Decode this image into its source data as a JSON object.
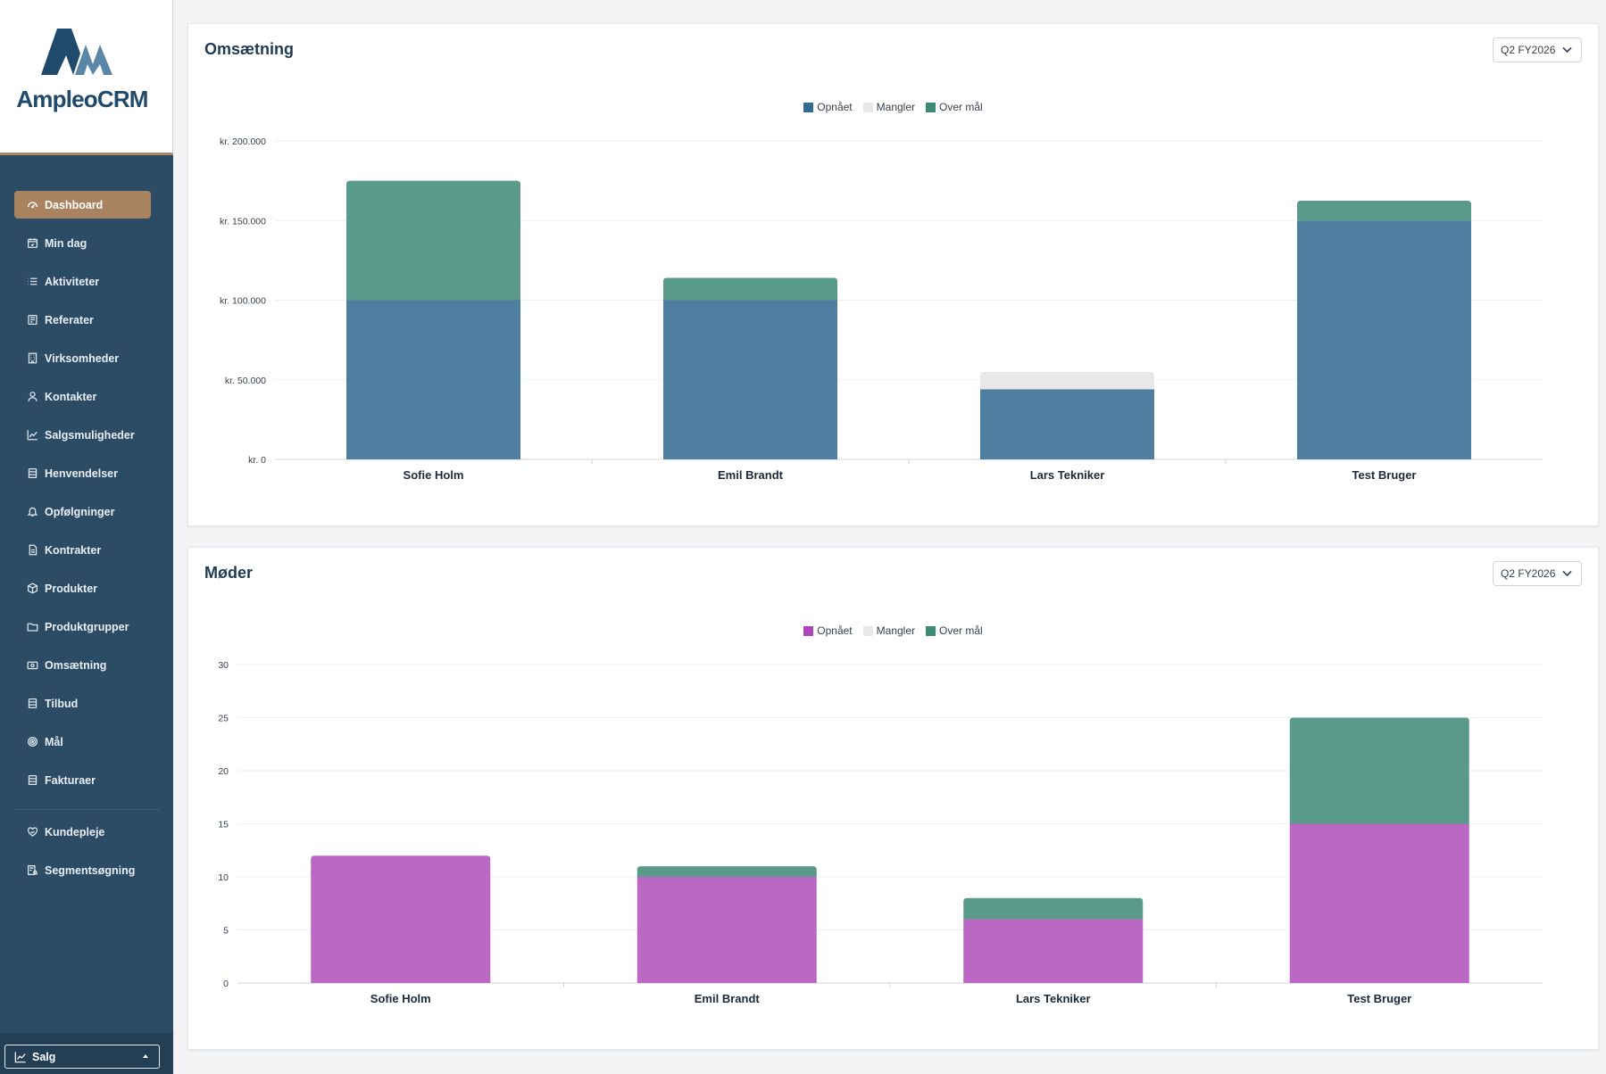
{
  "app": {
    "logo_text": "AmpleoCRM"
  },
  "sidebar": {
    "items": [
      {
        "label": "Dashboard",
        "icon": "dashboard-icon",
        "active": true
      },
      {
        "label": "Min dag",
        "icon": "calendar-icon"
      },
      {
        "label": "Aktiviteter",
        "icon": "list-icon"
      },
      {
        "label": "Referater",
        "icon": "notes-icon"
      },
      {
        "label": "Virksomheder",
        "icon": "building-icon"
      },
      {
        "label": "Kontakter",
        "icon": "user-icon"
      },
      {
        "label": "Salgsmuligheder",
        "icon": "trend-icon"
      },
      {
        "label": "Henvendelser",
        "icon": "inbox-icon"
      },
      {
        "label": "Opfølgninger",
        "icon": "bell-icon"
      },
      {
        "label": "Kontrakter",
        "icon": "contract-icon"
      },
      {
        "label": "Produkter",
        "icon": "box-icon"
      },
      {
        "label": "Produktgrupper",
        "icon": "folder-icon"
      },
      {
        "label": "Omsætning",
        "icon": "money-icon"
      },
      {
        "label": "Tilbud",
        "icon": "offer-icon"
      },
      {
        "label": "Mål",
        "icon": "target-icon"
      },
      {
        "label": "Fakturaer",
        "icon": "invoice-icon"
      }
    ],
    "secondary_items": [
      {
        "label": "Kundepleje",
        "icon": "heart-handshake-icon"
      },
      {
        "label": "Segmentsøgning",
        "icon": "segment-search-icon"
      }
    ],
    "role_select": {
      "value": "Salg",
      "icon": "chart-line-icon"
    }
  },
  "colors": {
    "sidebar_bg": "#2c4c66",
    "accent": "#a9825f",
    "achieved_revenue": "#4e7fa0",
    "achieved_meetings": "#ba68c4",
    "missing": "#e8e8e8",
    "over_target": "#5a9a8b"
  },
  "cards": [
    {
      "title": "Omsætning",
      "period": "Q2 FY2026",
      "legend": [
        {
          "label": "Opnået",
          "color": "#336b91"
        },
        {
          "label": "Mangler",
          "color": "#e8e8e8"
        },
        {
          "label": "Over mål",
          "color": "#3a8a76"
        }
      ]
    },
    {
      "title": "Møder",
      "period": "Q2 FY2026",
      "legend": [
        {
          "label": "Opnået",
          "color": "#ad44bb"
        },
        {
          "label": "Mangler",
          "color": "#e8e8e8"
        },
        {
          "label": "Over mål",
          "color": "#3a8a76"
        }
      ]
    }
  ],
  "chart_data": [
    {
      "type": "bar",
      "stacked": true,
      "title": "Omsætning",
      "categories": [
        "Sofie Holm",
        "Emil Brandt",
        "Lars Tekniker",
        "Test Bruger"
      ],
      "ylim": [
        0,
        200000
      ],
      "yticks": [
        0,
        50000,
        100000,
        150000,
        200000
      ],
      "ytick_labels": [
        "kr. 0",
        "kr. 50.000",
        "kr. 100.000",
        "kr. 150.000",
        "kr. 200.000"
      ],
      "legend_position": "top-center",
      "grid": true,
      "series": [
        {
          "name": "Opnået",
          "color": "#4e7fa0",
          "values": [
            100000,
            100000,
            44000,
            150000
          ]
        },
        {
          "name": "Mangler",
          "color": "#e8e8e8",
          "values": [
            0,
            0,
            11000,
            0
          ]
        },
        {
          "name": "Over mål",
          "color": "#5a9a8b",
          "values": [
            75000,
            14000,
            0,
            12500
          ]
        }
      ]
    },
    {
      "type": "bar",
      "stacked": true,
      "title": "Møder",
      "categories": [
        "Sofie Holm",
        "Emil Brandt",
        "Lars Tekniker",
        "Test Bruger"
      ],
      "ylim": [
        0,
        30
      ],
      "yticks": [
        0,
        5,
        10,
        15,
        20,
        25,
        30
      ],
      "ytick_labels": [
        "0",
        "5",
        "10",
        "15",
        "20",
        "25",
        "30"
      ],
      "legend_position": "top-center",
      "grid": true,
      "series": [
        {
          "name": "Opnået",
          "color": "#ba68c4",
          "values": [
            12,
            10,
            6,
            15
          ]
        },
        {
          "name": "Mangler",
          "color": "#e8e8e8",
          "values": [
            0,
            0,
            0,
            0
          ]
        },
        {
          "name": "Over mål",
          "color": "#5a9a8b",
          "values": [
            0,
            1,
            2,
            10
          ]
        }
      ]
    }
  ]
}
